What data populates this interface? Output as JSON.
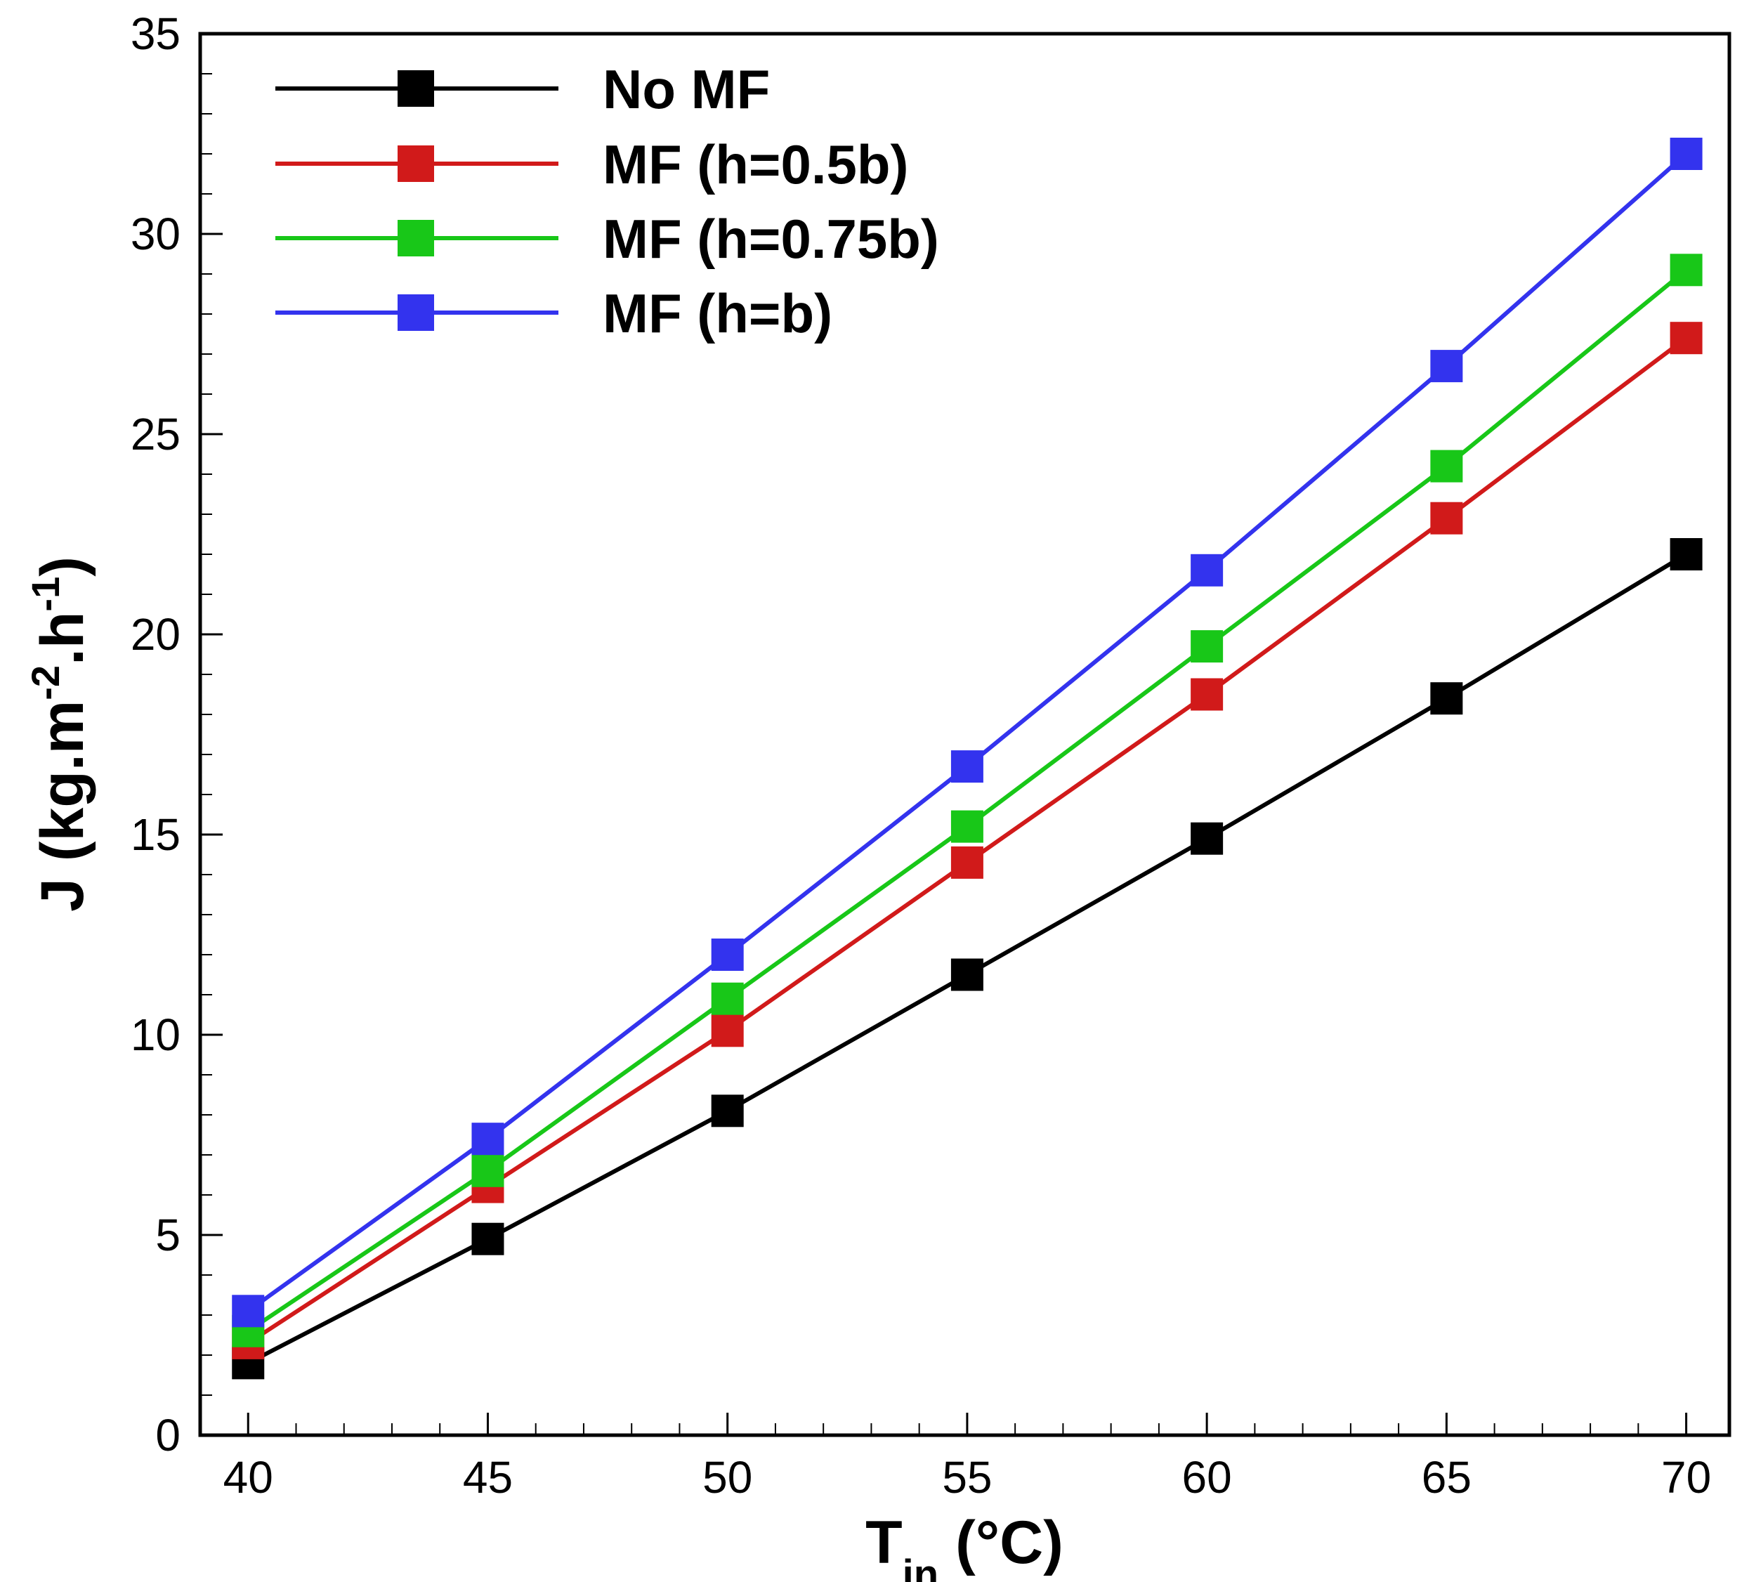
{
  "chart_data": {
    "type": "line",
    "xlabel": {
      "main": "T",
      "sub": "in",
      "rest": " (°C)"
    },
    "ylabel": {
      "parts": [
        "J (kg.m",
        "-2",
        ".h",
        "-1",
        ")"
      ]
    },
    "x": [
      40,
      45,
      50,
      55,
      60,
      65,
      70
    ],
    "xlim": [
      39,
      70.9
    ],
    "ylim": [
      0,
      35
    ],
    "x_ticks": [
      40,
      45,
      50,
      55,
      60,
      65,
      70
    ],
    "y_ticks": [
      0,
      5,
      10,
      15,
      20,
      25,
      30,
      35
    ],
    "x_minor_step": 1,
    "y_minor_step": 1,
    "grid": false,
    "legend_position": "top-left",
    "series": [
      {
        "name": "No MF",
        "color": "#000000",
        "values": [
          1.8,
          4.9,
          8.1,
          11.5,
          14.9,
          18.4,
          22.0
        ]
      },
      {
        "name": "MF (h=0.5b)",
        "color": "#d11a1a",
        "values": [
          2.3,
          6.2,
          10.1,
          14.3,
          18.5,
          22.9,
          27.4
        ]
      },
      {
        "name": "MF (h=0.75b)",
        "color": "#18c718",
        "values": [
          2.6,
          6.6,
          10.9,
          15.2,
          19.7,
          24.2,
          29.1
        ]
      },
      {
        "name": "MF (h=b)",
        "color": "#3333ee",
        "values": [
          3.1,
          7.4,
          12.0,
          16.7,
          21.6,
          26.7,
          32.0
        ]
      }
    ]
  }
}
